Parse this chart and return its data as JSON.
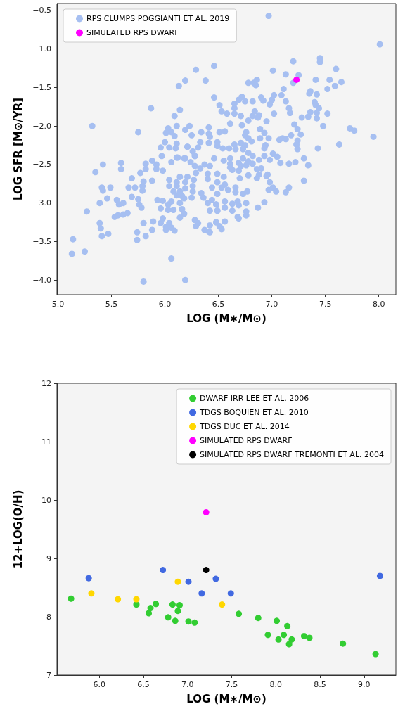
{
  "chart_data": [
    {
      "type": "scatter",
      "xlabel": "LOG (M∗/M⊙)",
      "ylabel": "LOG SFR [M⊙/YR]",
      "xlim": [
        4.99,
        8.16
      ],
      "ylim": [
        -4.19,
        -0.41
      ],
      "xticks": [
        {
          "value": 5.0,
          "label": "5.0"
        },
        {
          "value": 5.5,
          "label": "5.5"
        },
        {
          "value": 6.0,
          "label": "6.0"
        },
        {
          "value": 6.5,
          "label": "6.5"
        },
        {
          "value": 7.0,
          "label": "7.0"
        },
        {
          "value": 7.5,
          "label": "7.5"
        },
        {
          "value": 8.0,
          "label": "8.0"
        }
      ],
      "yticks": [
        {
          "value": -4.0,
          "label": "−4.0"
        },
        {
          "value": -3.5,
          "label": "−3.5"
        },
        {
          "value": -3.0,
          "label": "−3.0"
        },
        {
          "value": -2.5,
          "label": "−2.5"
        },
        {
          "value": -2.0,
          "label": "−2.0"
        },
        {
          "value": -1.5,
          "label": "−1.5"
        },
        {
          "value": -1.0,
          "label": "−1.0"
        },
        {
          "value": -0.5,
          "label": "−0.5"
        }
      ],
      "grid": false,
      "legend": "top left",
      "marker": "circle",
      "series": [
        {
          "name": "RPS CLUMPS POGGIANTI ET AL. 2019",
          "color": "#a6bff1",
          "x": [
            5.32,
            5.75,
            5.87,
            6.13,
            6.19,
            6.29,
            6.46,
            6.38,
            6.46,
            6.51,
            6.53,
            6.14,
            6.09,
            6.11,
            6.03,
            6.01,
            6.06,
            6.09,
            6.23,
            6.19,
            6.25,
            6.34,
            6.41,
            6.41,
            6.42,
            6.51,
            6.0,
            5.96,
            6.04,
            6.11,
            6.1,
            6.21,
            6.33,
            6.31,
            6.26,
            6.28,
            6.41,
            6.49,
            6.49,
            6.54,
            5.97,
            6.11,
            6.19,
            6.46,
            6.97,
            8.01,
            7.45,
            7.45,
            7.2,
            7.6,
            7.01,
            7.13,
            7.25,
            7.2,
            7.41,
            7.54,
            7.65,
            7.59,
            7.52,
            7.36,
            7.35,
            7.42,
            7.11,
            7.09,
            6.78,
            6.83,
            6.86,
            6.85,
            6.65,
            6.72,
            6.69,
            6.75,
            6.82,
            6.9,
            6.92,
            7.0,
            7.02,
            6.98,
            7.13,
            7.16,
            7.17,
            7.4,
            7.41,
            7.44,
            7.42,
            7.42,
            7.36,
            7.34,
            7.28,
            7.52,
            7.48,
            7.73,
            7.77,
            7.95,
            7.63,
            7.43,
            6.65,
            6.65,
            6.58,
            6.71,
            6.84,
            6.82,
            6.88,
            6.87,
            7.02,
            6.78,
            6.95,
            6.61,
            6.72,
            7.21,
            7.24,
            7.27,
            6.89,
            6.93,
            6.76,
            6.75,
            6.78,
            6.81,
            6.56,
            6.89,
            6.97,
            7.18,
            7.07,
            7.1,
            7.13,
            7.24,
            7.23,
            7.24,
            6.94,
            6.93,
            6.65,
            6.71,
            6.75,
            6.73,
            6.66,
            6.6,
            7.01,
            6.93,
            6.78,
            6.82,
            7.3,
            7.05,
            7.34,
            7.3,
            7.22,
            7.16,
            7.08,
            6.98,
            6.88,
            6.82,
            6.78,
            6.73,
            6.69,
            6.71,
            6.76,
            6.61,
            6.61,
            6.61,
            6.63,
            6.55,
            6.69,
            6.86,
            6.9,
            6.96,
            6.95,
            6.88,
            6.86,
            6.78,
            6.7,
            6.55,
            6.49,
            6.49,
            6.44,
            6.56,
            6.53,
            6.59,
            6.49,
            6.66,
            6.66,
            6.73,
            6.77,
            6.98,
            6.97,
            7.01,
            7.04,
            7.13,
            7.16,
            6.93,
            6.87,
            6.76,
            6.68,
            6.69,
            6.63,
            6.56,
            6.56,
            6.63,
            6.48,
            6.49,
            6.44,
            6.76,
            6.76,
            6.68,
            6.69,
            6.56,
            6.48,
            6.51,
            6.53,
            6.42,
            5.14,
            5.13,
            5.25,
            5.27,
            5.35,
            5.42,
            5.41,
            5.42,
            5.49,
            5.39,
            5.46,
            5.39,
            5.4,
            5.41,
            5.47,
            5.53,
            5.56,
            5.55,
            5.57,
            5.61,
            5.61,
            5.65,
            5.59,
            5.59,
            5.66,
            5.69,
            5.69,
            5.72,
            5.75,
            5.76,
            5.78,
            5.77,
            5.79,
            5.79,
            5.8,
            5.82,
            5.82,
            5.88,
            5.88,
            5.92,
            5.92,
            5.98,
            5.93,
            5.98,
            5.96,
            5.8,
            5.74,
            5.74,
            5.82,
            5.88,
            5.89,
            5.96,
            5.98,
            6.01,
            6.01,
            6.04,
            6.06,
            6.09,
            6.06,
            5.8,
            6.19,
            6.03,
            6.03,
            6.08,
            6.06,
            6.04,
            6.04,
            6.06,
            6.11,
            6.11,
            6.08,
            6.11,
            6.14,
            6.14,
            6.14,
            6.16,
            6.18,
            6.16,
            6.18,
            6.14,
            6.19,
            6.19,
            6.21,
            6.18,
            6.21,
            6.12,
            6.24,
            6.28,
            6.25,
            6.26,
            6.26,
            6.27,
            6.29,
            6.28,
            6.28,
            6.29,
            6.31,
            6.33,
            6.34,
            6.36,
            6.37,
            6.4,
            6.4,
            6.4,
            6.42,
            6.37,
            6.41,
            6.42,
            6.48,
            6.48,
            6.49,
            6.42
          ],
          "values": [
            -2.0,
            -2.08,
            -1.77,
            -1.48,
            -1.41,
            -1.27,
            -1.22,
            -1.41,
            -1.63,
            -1.73,
            -1.81,
            -1.79,
            -1.87,
            -2.0,
            -2.03,
            -2.09,
            -2.08,
            -2.13,
            -2.0,
            -2.05,
            -2.12,
            -2.08,
            -2.02,
            -2.1,
            -2.14,
            -2.08,
            -2.21,
            -2.28,
            -2.28,
            -2.23,
            -2.29,
            -2.27,
            -2.21,
            -2.28,
            -2.33,
            -2.39,
            -2.22,
            -2.21,
            -2.26,
            -2.29,
            -2.39,
            -2.41,
            -2.42,
            -2.42,
            -0.57,
            -0.94,
            -1.12,
            -1.17,
            -1.16,
            -1.26,
            -1.28,
            -1.33,
            -1.34,
            -1.44,
            -1.4,
            -1.4,
            -1.43,
            -1.48,
            -1.52,
            -1.55,
            -1.58,
            -1.59,
            -1.52,
            -1.6,
            -1.44,
            -1.44,
            -1.4,
            -1.47,
            -1.71,
            -1.62,
            -1.66,
            -1.68,
            -1.68,
            -1.63,
            -1.67,
            -1.66,
            -1.6,
            -1.72,
            -1.68,
            -1.77,
            -1.83,
            -1.69,
            -1.73,
            -1.77,
            -1.83,
            -1.9,
            -1.82,
            -1.88,
            -1.89,
            -1.84,
            -2.0,
            -2.03,
            -2.06,
            -2.14,
            -2.24,
            -2.29,
            -1.77,
            -1.84,
            -1.84,
            -1.87,
            -1.81,
            -1.87,
            -1.86,
            -1.89,
            -1.84,
            -1.93,
            -1.94,
            -1.97,
            -1.99,
            -1.98,
            -2.04,
            -2.11,
            -2.04,
            -2.09,
            -2.08,
            -2.12,
            -2.16,
            -2.2,
            -2.07,
            -2.16,
            -2.16,
            -2.12,
            -2.18,
            -2.16,
            -2.17,
            -2.19,
            -2.24,
            -2.3,
            -2.25,
            -2.29,
            -2.24,
            -2.22,
            -2.25,
            -2.3,
            -2.3,
            -2.29,
            -2.36,
            -2.39,
            -2.35,
            -2.39,
            -2.42,
            -2.4,
            -2.51,
            -2.71,
            -2.47,
            -2.49,
            -2.48,
            -2.44,
            -2.44,
            -2.49,
            -2.46,
            -2.42,
            -2.48,
            -2.52,
            -2.51,
            -2.42,
            -2.49,
            -2.54,
            -2.57,
            -2.45,
            -2.58,
            -2.56,
            -2.55,
            -2.63,
            -2.65,
            -2.63,
            -2.68,
            -2.64,
            -2.68,
            -2.66,
            -2.62,
            -2.73,
            -2.8,
            -2.76,
            -2.8,
            -2.83,
            -2.88,
            -2.8,
            -2.86,
            -2.88,
            -2.85,
            -2.73,
            -2.83,
            -2.8,
            -2.85,
            -2.86,
            -2.8,
            -2.99,
            -3.06,
            -3.0,
            -2.98,
            -3.03,
            -3.01,
            -2.98,
            -3.06,
            -3.1,
            -3.02,
            -3.1,
            -2.96,
            -3.11,
            -3.16,
            -3.18,
            -3.2,
            -3.24,
            -3.25,
            -3.3,
            -3.34,
            -3.38,
            -3.47,
            -3.66,
            -3.63,
            -3.11,
            -2.6,
            -2.5,
            -2.8,
            -2.84,
            -2.8,
            -3.0,
            -2.94,
            -3.26,
            -3.33,
            -3.43,
            -3.4,
            -3.18,
            -3.16,
            -2.96,
            -3.02,
            -3.0,
            -3.15,
            -3.13,
            -2.48,
            -2.56,
            -2.8,
            -2.68,
            -2.92,
            -2.8,
            -2.95,
            -3.02,
            -3.06,
            -2.61,
            -2.78,
            -2.84,
            -2.72,
            -2.49,
            -2.56,
            -2.71,
            -2.45,
            -2.5,
            -2.56,
            -2.58,
            -2.96,
            -2.97,
            -3.07,
            -3.26,
            -3.38,
            -3.48,
            -3.43,
            -3.35,
            -3.24,
            -3.26,
            -3.2,
            -3.31,
            -3.35,
            -3.26,
            -3.32,
            -3.36,
            -3.72,
            -4.02,
            -4.0,
            -3.02,
            -3.09,
            -3.09,
            -2.98,
            -2.78,
            -2.7,
            -2.47,
            -2.73,
            -2.78,
            -2.85,
            -2.9,
            -2.66,
            -2.85,
            -3.0,
            -2.91,
            -2.94,
            -3.08,
            -3.14,
            -3.19,
            -2.73,
            -2.81,
            -2.66,
            -2.42,
            -2.27,
            -2.41,
            -2.47,
            -2.39,
            -2.93,
            -2.78,
            -2.85,
            -2.7,
            -2.61,
            -2.52,
            -3.22,
            -3.3,
            -3.26,
            -2.55,
            -2.87,
            -2.93,
            -2.5,
            -2.62,
            -2.69,
            -3.0,
            -3.1,
            -3.35,
            -3.37,
            -3.29,
            -3.25,
            -3.02,
            -3.1,
            -2.52
          ]
        },
        {
          "name": "SIMULATED RPS DWARF",
          "color": "#ff00ff",
          "x": [
            7.23
          ],
          "values": [
            -1.4
          ]
        }
      ]
    },
    {
      "type": "scatter",
      "xlabel": "LOG (M∗/M⊙)",
      "ylabel": "12+LOG(O/H)",
      "xlim": [
        5.52,
        9.36
      ],
      "ylim": [
        7,
        12
      ],
      "xticks": [
        {
          "value": 6.0,
          "label": "6.0"
        },
        {
          "value": 6.5,
          "label": "6.5"
        },
        {
          "value": 7.0,
          "label": "7.0"
        },
        {
          "value": 7.5,
          "label": "7.5"
        },
        {
          "value": 8.0,
          "label": "8.0"
        },
        {
          "value": 8.5,
          "label": "8.5"
        },
        {
          "value": 9.0,
          "label": "9.0"
        }
      ],
      "yticks": [
        7,
        8,
        9,
        10,
        11,
        12
      ],
      "grid": false,
      "legend": "top right",
      "marker": "circle",
      "series": [
        {
          "name": "DWARF IRR LEE ET AL. 2006",
          "color": "#32cd32",
          "x": [
            5.68,
            6.42,
            6.58,
            6.56,
            6.64,
            6.78,
            6.83,
            6.86,
            6.91,
            6.89,
            7.01,
            7.08,
            7.58,
            7.8,
            7.91,
            8.01,
            8.03,
            8.09,
            8.13,
            8.15,
            8.18,
            8.32,
            8.38,
            8.76,
            9.13
          ],
          "values": [
            8.31,
            8.21,
            8.15,
            8.06,
            8.22,
            7.99,
            8.21,
            7.93,
            8.2,
            8.1,
            7.92,
            7.9,
            8.05,
            7.98,
            7.69,
            7.93,
            7.61,
            7.69,
            7.84,
            7.53,
            7.61,
            7.67,
            7.64,
            7.54,
            7.36
          ]
        },
        {
          "name": "TDGS BOQUIEN ET AL. 2010",
          "color": "#4169e1",
          "x": [
            5.88,
            6.72,
            7.01,
            7.16,
            7.32,
            7.49,
            9.18
          ],
          "values": [
            8.66,
            8.8,
            8.6,
            8.4,
            8.65,
            8.4,
            8.7
          ]
        },
        {
          "name": "TDGS DUC ET AL. 2014",
          "color": "#ffd700",
          "x": [
            5.91,
            6.21,
            6.42,
            6.89,
            7.39
          ],
          "values": [
            8.4,
            8.3,
            8.3,
            8.6,
            8.21
          ]
        },
        {
          "name": "SIMULATED RPS DWARF",
          "color": "#ff00ff",
          "x": [
            7.21
          ],
          "values": [
            9.79
          ]
        },
        {
          "name": "SIMULATED RPS DWARF TREMONTI ET AL. 2004",
          "color": "#000000",
          "x": [
            7.21
          ],
          "values": [
            8.8
          ]
        }
      ]
    }
  ]
}
